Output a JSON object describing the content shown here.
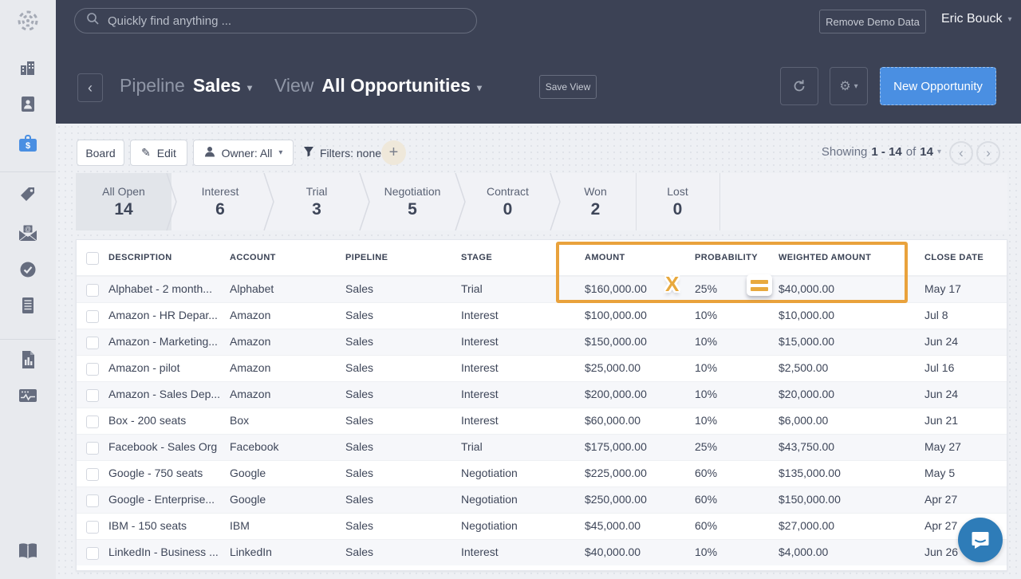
{
  "topbar": {
    "search_placeholder": "Quickly find anything ...",
    "remove_demo_button": "Remove Demo Data",
    "user_name": "Eric Bouck"
  },
  "header": {
    "pipeline_label": "Pipeline",
    "pipeline_value": "Sales",
    "view_label": "View",
    "view_value": "All Opportunities",
    "save_view_button": "Save View",
    "new_opportunity_button": "New Opportunity"
  },
  "toolbar": {
    "board_button": "Board",
    "edit_button": "Edit",
    "owner_button": "Owner: All",
    "filters_label": "Filters: none",
    "add_filter_button": "+",
    "showing_prefix": "Showing",
    "showing_range": "1 - 14",
    "showing_of": "of",
    "showing_total": "14"
  },
  "stages": [
    {
      "label": "All Open",
      "count": "14",
      "selected": true
    },
    {
      "label": "Interest",
      "count": "6",
      "selected": false
    },
    {
      "label": "Trial",
      "count": "3",
      "selected": false
    },
    {
      "label": "Negotiation",
      "count": "5",
      "selected": false
    },
    {
      "label": "Contract",
      "count": "0",
      "selected": false
    },
    {
      "label": "Won",
      "count": "2",
      "selected": false
    },
    {
      "label": "Lost",
      "count": "0",
      "selected": false
    }
  ],
  "table": {
    "headers": [
      "DESCRIPTION",
      "ACCOUNT",
      "PIPELINE",
      "STAGE",
      "AMOUNT",
      "PROBABILITY",
      "WEIGHTED AMOUNT",
      "CLOSE DATE"
    ],
    "rows": [
      {
        "description": "Alphabet - 2 month...",
        "account": "Alphabet",
        "pipeline": "Sales",
        "stage": "Trial",
        "amount": "$160,000.00",
        "probability": "25%",
        "weighted_amount": "$40,000.00",
        "close_date": "May 17"
      },
      {
        "description": "Amazon - HR Depar...",
        "account": "Amazon",
        "pipeline": "Sales",
        "stage": "Interest",
        "amount": "$100,000.00",
        "probability": "10%",
        "weighted_amount": "$10,000.00",
        "close_date": "Jul 8"
      },
      {
        "description": "Amazon - Marketing...",
        "account": "Amazon",
        "pipeline": "Sales",
        "stage": "Interest",
        "amount": "$150,000.00",
        "probability": "10%",
        "weighted_amount": "$15,000.00",
        "close_date": "Jun 24"
      },
      {
        "description": "Amazon - pilot",
        "account": "Amazon",
        "pipeline": "Sales",
        "stage": "Interest",
        "amount": "$25,000.00",
        "probability": "10%",
        "weighted_amount": "$2,500.00",
        "close_date": "Jul 16"
      },
      {
        "description": "Amazon - Sales Dep...",
        "account": "Amazon",
        "pipeline": "Sales",
        "stage": "Interest",
        "amount": "$200,000.00",
        "probability": "10%",
        "weighted_amount": "$20,000.00",
        "close_date": "Jun 24"
      },
      {
        "description": "Box - 200 seats",
        "account": "Box",
        "pipeline": "Sales",
        "stage": "Interest",
        "amount": "$60,000.00",
        "probability": "10%",
        "weighted_amount": "$6,000.00",
        "close_date": "Jun 21"
      },
      {
        "description": "Facebook - Sales Org",
        "account": "Facebook",
        "pipeline": "Sales",
        "stage": "Trial",
        "amount": "$175,000.00",
        "probability": "25%",
        "weighted_amount": "$43,750.00",
        "close_date": "May 27"
      },
      {
        "description": "Google - 750 seats",
        "account": "Google",
        "pipeline": "Sales",
        "stage": "Negotiation",
        "amount": "$225,000.00",
        "probability": "60%",
        "weighted_amount": "$135,000.00",
        "close_date": "May 5"
      },
      {
        "description": "Google - Enterprise...",
        "account": "Google",
        "pipeline": "Sales",
        "stage": "Negotiation",
        "amount": "$250,000.00",
        "probability": "60%",
        "weighted_amount": "$150,000.00",
        "close_date": "Apr 27"
      },
      {
        "description": "IBM - 150 seats",
        "account": "IBM",
        "pipeline": "Sales",
        "stage": "Negotiation",
        "amount": "$45,000.00",
        "probability": "60%",
        "weighted_amount": "$27,000.00",
        "close_date": "Apr 27"
      },
      {
        "description": "LinkedIn - Business ...",
        "account": "LinkedIn",
        "pipeline": "Sales",
        "stage": "Interest",
        "amount": "$40,000.00",
        "probability": "10%",
        "weighted_amount": "$4,000.00",
        "close_date": "Jun 26"
      }
    ]
  },
  "highlight": {
    "multiply_icon": "X",
    "border_color": "#E9A23C"
  },
  "icons": {
    "sidebar": [
      "logo-icon",
      "companies-icon",
      "contacts-icon",
      "opportunities-icon",
      "tags-icon",
      "inbox-icon",
      "tasks-icon",
      "notes-icon",
      "reports-icon",
      "activity-icon",
      "help-book-icon"
    ]
  },
  "colors": {
    "accent_blue": "#4A8FE2",
    "dark_navy": "#3C4255",
    "highlight_gold": "#E9A23C",
    "intercom_blue": "#2E7CB8"
  }
}
